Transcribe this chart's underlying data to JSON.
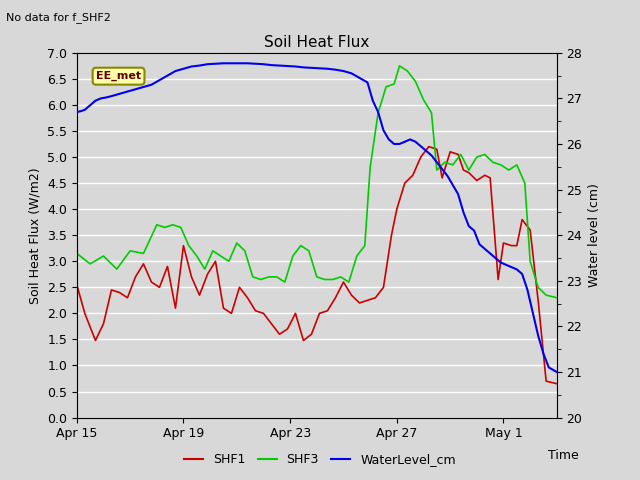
{
  "title": "Soil Heat Flux",
  "top_left_note": "No data for f_SHF2",
  "ylabel_left": "Soil Heat Flux (W/m2)",
  "ylabel_right": "Water level (cm)",
  "xlabel": "Time",
  "ylim_left": [
    0.0,
    7.0
  ],
  "ylim_right": [
    20.0,
    28.0
  ],
  "bg_color": "#d8d8d8",
  "plot_bg_color": "#d8d8d8",
  "grid_color": "#ffffff",
  "annotation_box": "EE_met",
  "annotation_box_color": "#ffffaa",
  "annotation_box_border": "#888800",
  "xtick_labels": [
    "Apr 15",
    "Apr 19",
    "Apr 23",
    "Apr 27",
    "May 1"
  ],
  "xtick_positions": [
    0,
    4,
    8,
    12,
    16
  ],
  "shf1_color": "#cc0000",
  "shf3_color": "#00cc00",
  "wl_color": "#0000ee",
  "shf1_x": [
    0,
    0.3,
    0.7,
    1.0,
    1.3,
    1.6,
    1.9,
    2.2,
    2.5,
    2.8,
    3.1,
    3.4,
    3.7,
    4.0,
    4.3,
    4.6,
    4.9,
    5.2,
    5.5,
    5.8,
    6.1,
    6.4,
    6.7,
    7.0,
    7.3,
    7.6,
    7.9,
    8.2,
    8.5,
    8.8,
    9.1,
    9.4,
    9.7,
    10.0,
    10.3,
    10.6,
    10.9,
    11.2,
    11.5,
    11.8,
    12.0,
    12.3,
    12.6,
    12.9,
    13.2,
    13.5,
    13.7,
    14.0,
    14.3,
    14.5,
    14.7,
    15.0,
    15.3,
    15.5,
    15.8,
    16.0,
    16.3,
    16.5,
    16.7,
    17.0,
    17.3,
    17.6,
    18.0
  ],
  "shf1_y": [
    2.55,
    2.0,
    1.48,
    1.8,
    2.45,
    2.4,
    2.3,
    2.7,
    2.95,
    2.6,
    2.5,
    2.9,
    2.1,
    3.3,
    2.7,
    2.35,
    2.75,
    3.0,
    2.1,
    2.0,
    2.5,
    2.3,
    2.05,
    2.0,
    1.8,
    1.6,
    1.7,
    2.0,
    1.48,
    1.6,
    2.0,
    2.05,
    2.3,
    2.6,
    2.35,
    2.2,
    2.25,
    2.3,
    2.5,
    3.5,
    4.0,
    4.5,
    4.65,
    5.0,
    5.2,
    5.15,
    4.6,
    5.1,
    5.05,
    4.75,
    4.7,
    4.55,
    4.65,
    4.6,
    2.65,
    3.35,
    3.3,
    3.3,
    3.8,
    3.6,
    2.25,
    0.7,
    0.65
  ],
  "shf3_x": [
    0,
    0.5,
    1.0,
    1.5,
    2.0,
    2.5,
    3.0,
    3.3,
    3.6,
    3.9,
    4.2,
    4.5,
    4.8,
    5.1,
    5.4,
    5.7,
    6.0,
    6.3,
    6.6,
    6.9,
    7.2,
    7.5,
    7.8,
    8.1,
    8.4,
    8.7,
    9.0,
    9.3,
    9.6,
    9.9,
    10.2,
    10.5,
    10.8,
    11.0,
    11.3,
    11.6,
    11.9,
    12.1,
    12.4,
    12.7,
    13.0,
    13.3,
    13.5,
    13.8,
    14.1,
    14.4,
    14.7,
    15.0,
    15.3,
    15.6,
    15.9,
    16.2,
    16.5,
    16.8,
    17.0,
    17.3,
    17.6,
    18.0
  ],
  "shf3_y": [
    3.15,
    2.95,
    3.1,
    2.85,
    3.2,
    3.15,
    3.7,
    3.65,
    3.7,
    3.65,
    3.3,
    3.1,
    2.85,
    3.2,
    3.1,
    3.0,
    3.35,
    3.2,
    2.7,
    2.65,
    2.7,
    2.7,
    2.6,
    3.1,
    3.3,
    3.2,
    2.7,
    2.65,
    2.65,
    2.7,
    2.6,
    3.1,
    3.3,
    4.8,
    5.85,
    6.35,
    6.4,
    6.75,
    6.65,
    6.45,
    6.1,
    5.85,
    4.75,
    4.9,
    4.85,
    5.05,
    4.75,
    5.0,
    5.05,
    4.9,
    4.85,
    4.75,
    4.85,
    4.5,
    3.0,
    2.5,
    2.35,
    2.3
  ],
  "wl_x": [
    0,
    0.15,
    0.3,
    0.5,
    0.7,
    0.9,
    1.1,
    1.3,
    1.6,
    1.9,
    2.2,
    2.5,
    2.8,
    3.1,
    3.4,
    3.7,
    4.0,
    4.3,
    4.6,
    4.9,
    5.2,
    5.5,
    5.8,
    6.1,
    6.4,
    6.7,
    7.0,
    7.3,
    7.6,
    7.9,
    8.2,
    8.5,
    8.8,
    9.1,
    9.4,
    9.7,
    10.0,
    10.3,
    10.6,
    10.9,
    11.1,
    11.3,
    11.5,
    11.7,
    11.9,
    12.1,
    12.3,
    12.5,
    12.7,
    12.9,
    13.1,
    13.3,
    13.5,
    13.7,
    13.9,
    14.1,
    14.3,
    14.5,
    14.7,
    14.9,
    15.1,
    15.3,
    15.5,
    15.7,
    15.9,
    16.1,
    16.3,
    16.5,
    16.7,
    16.9,
    17.1,
    17.3,
    17.5,
    17.7,
    18.0
  ],
  "wl_y": [
    26.7,
    26.72,
    26.75,
    26.85,
    26.95,
    27.0,
    27.02,
    27.05,
    27.1,
    27.15,
    27.2,
    27.25,
    27.3,
    27.4,
    27.5,
    27.6,
    27.65,
    27.7,
    27.72,
    27.75,
    27.76,
    27.77,
    27.77,
    27.77,
    27.77,
    27.76,
    27.75,
    27.73,
    27.72,
    27.71,
    27.7,
    27.68,
    27.67,
    27.66,
    27.65,
    27.63,
    27.6,
    27.55,
    27.45,
    27.35,
    26.95,
    26.7,
    26.3,
    26.1,
    26.0,
    26.0,
    26.05,
    26.1,
    26.05,
    25.95,
    25.85,
    25.75,
    25.6,
    25.45,
    25.3,
    25.1,
    24.9,
    24.5,
    24.2,
    24.1,
    23.8,
    23.7,
    23.6,
    23.5,
    23.4,
    23.35,
    23.3,
    23.25,
    23.15,
    22.8,
    22.3,
    21.8,
    21.4,
    21.1,
    21.0
  ]
}
